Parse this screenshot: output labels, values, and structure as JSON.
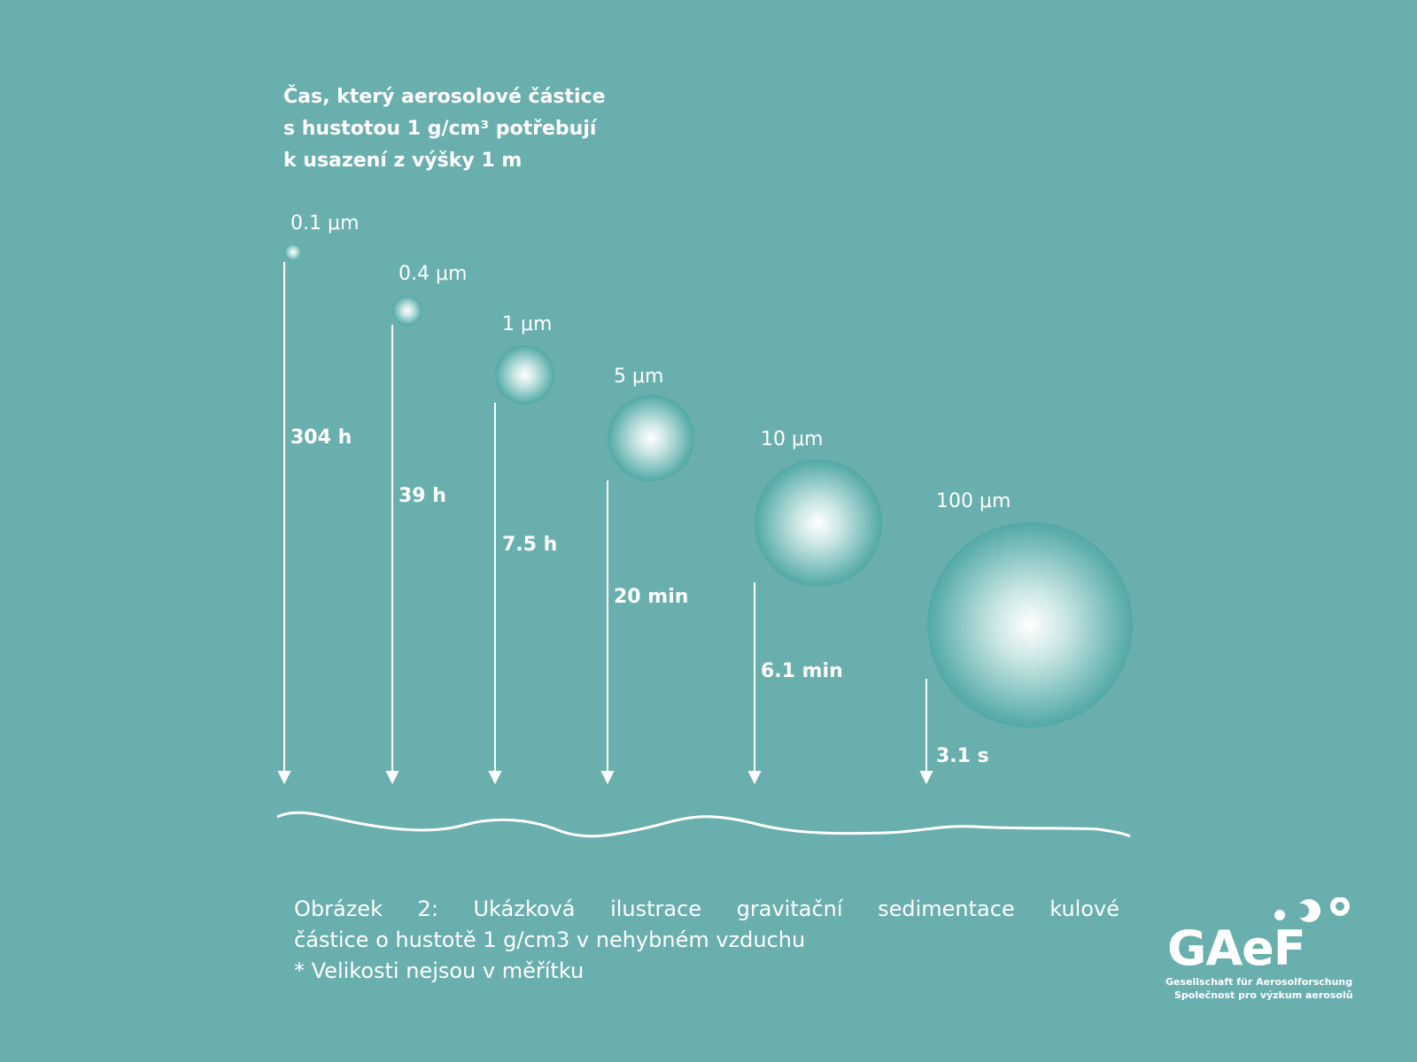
{
  "title": [
    "Čas, který aerosolové částice",
    "s hustotou 1 g/cm³ potřebují",
    "k usazení z výšky 1 m"
  ],
  "particles": [
    {
      "size": "0.1 μm",
      "time": "304 h"
    },
    {
      "size": "0.4 μm",
      "time": "39 h"
    },
    {
      "size": "1 μm",
      "time": "7.5 h"
    },
    {
      "size": "5 μm",
      "time": "20 min"
    },
    {
      "size": "10 μm",
      "time": "6.1 min"
    },
    {
      "size": "100 μm",
      "time": "3.1 s"
    }
  ],
  "caption": {
    "line1": "Obrázek 2: Ukázková ilustrace gravitační sedimentace kulové",
    "line2": "částice o hustotě 1 g/cm3 v nehybném vzduchu",
    "line3": "* Velikosti nejsou v měřítku"
  },
  "logo": {
    "name": "GAeF",
    "sub1": "Gesellschaft für Aerosolforschung",
    "sub2": "Společnost pro výzkum aerosolů"
  },
  "colors": {
    "background": "#69afae",
    "particle_dark": "#137f7c"
  }
}
